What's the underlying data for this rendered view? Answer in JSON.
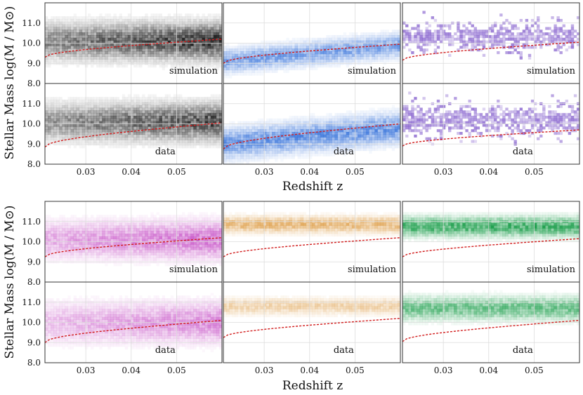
{
  "figure": {
    "ylabel": "Stellar Mass log(M / M⊙)",
    "xlabel": "Redshift z"
  },
  "chart_data": {
    "type": "heatmap",
    "description_units": "2D histogram of galaxy counts; x = redshift, y = log stellar mass",
    "xlim": [
      0.021,
      0.06
    ],
    "ylim": [
      8.0,
      12.0
    ],
    "xticks": [
      0.03,
      0.04,
      0.05
    ],
    "xtick_labels": [
      "0.03",
      "0.04",
      "0.05"
    ],
    "yticks": [
      8.0,
      9.0,
      10.0,
      11.0
    ],
    "ytick_labels": [
      "8.0",
      "9.0",
      "10.0",
      "11.0"
    ],
    "row_labels": [
      "simulation",
      "data"
    ],
    "groups": [
      {
        "panels": [
          {
            "name": "black",
            "color": "#1a1a1a",
            "sim": {
              "center": 10.1,
              "spread": 0.55,
              "density": 0.95,
              "style": "band"
            },
            "data": {
              "center": 10.1,
              "spread": 0.55,
              "density": 0.85,
              "style": "band"
            },
            "curve_sim": [
              9.3,
              10.2
            ],
            "curve_data": [
              8.85,
              10.05
            ]
          },
          {
            "name": "blue",
            "color": "#1f62d6",
            "sim": {
              "center": 9.6,
              "spread": 0.35,
              "density": 0.6,
              "style": "low"
            },
            "data": {
              "center": 9.5,
              "spread": 0.45,
              "density": 0.7,
              "style": "low"
            },
            "curve_sim": [
              9.0,
              9.95
            ],
            "curve_data": [
              8.75,
              10.0
            ]
          },
          {
            "name": "purple",
            "color": "#6a3dc2",
            "sim": {
              "center": 10.3,
              "spread": 0.4,
              "density": 0.25,
              "style": "sparse"
            },
            "data": {
              "center": 10.2,
              "spread": 0.45,
              "density": 0.12,
              "style": "sparse"
            },
            "curve_sim": [
              9.15,
              10.05
            ],
            "curve_data": [
              8.9,
              9.7
            ]
          }
        ]
      },
      {
        "panels": [
          {
            "name": "magenta",
            "color": "#c03cc0",
            "sim": {
              "center": 10.1,
              "spread": 0.55,
              "density": 0.75,
              "style": "band"
            },
            "data": {
              "center": 10.0,
              "spread": 0.6,
              "density": 0.6,
              "style": "band"
            },
            "curve_sim": [
              9.25,
              10.2
            ],
            "curve_data": [
              9.0,
              10.1
            ]
          },
          {
            "name": "orange",
            "color": "#d9902e",
            "sim": {
              "center": 10.85,
              "spread": 0.25,
              "density": 0.65,
              "style": "high"
            },
            "data": {
              "center": 10.8,
              "spread": 0.25,
              "density": 0.4,
              "style": "high"
            },
            "curve_sim": [
              9.25,
              10.2
            ],
            "curve_data": [
              9.25,
              10.2
            ]
          },
          {
            "name": "green",
            "color": "#169c47",
            "sim": {
              "center": 10.75,
              "spread": 0.3,
              "density": 0.85,
              "style": "high"
            },
            "data": {
              "center": 10.7,
              "spread": 0.35,
              "density": 0.65,
              "style": "high"
            },
            "curve_sim": [
              9.25,
              10.15
            ],
            "curve_data": [
              9.05,
              10.1
            ]
          }
        ]
      }
    ]
  }
}
